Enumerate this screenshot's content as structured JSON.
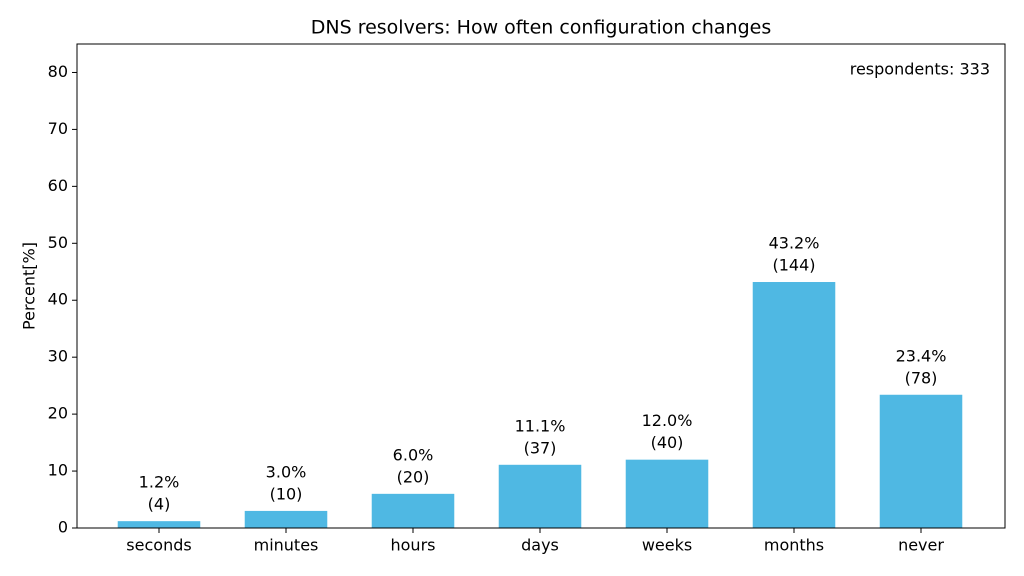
{
  "chart_data": {
    "type": "bar",
    "title": "DNS resolvers: How often configuration changes",
    "ylabel": "Percent[%]",
    "annotation": "respondents: 333",
    "categories": [
      "seconds",
      "minutes",
      "hours",
      "days",
      "weeks",
      "months",
      "never"
    ],
    "values": [
      1.2,
      3.0,
      6.0,
      11.1,
      12.0,
      43.2,
      23.4
    ],
    "value_labels": [
      "1.2%",
      "3.0%",
      "6.0%",
      "11.1%",
      "12.0%",
      "43.2%",
      "23.4%"
    ],
    "count_labels": [
      "(4)",
      "(10)",
      "(20)",
      "(37)",
      "(40)",
      "(144)",
      "(78)"
    ],
    "color": "#4fb8e3",
    "ylim": [
      0,
      85
    ],
    "yticks": [
      0,
      10,
      20,
      30,
      40,
      50,
      60,
      70,
      80
    ],
    "grid": false
  }
}
